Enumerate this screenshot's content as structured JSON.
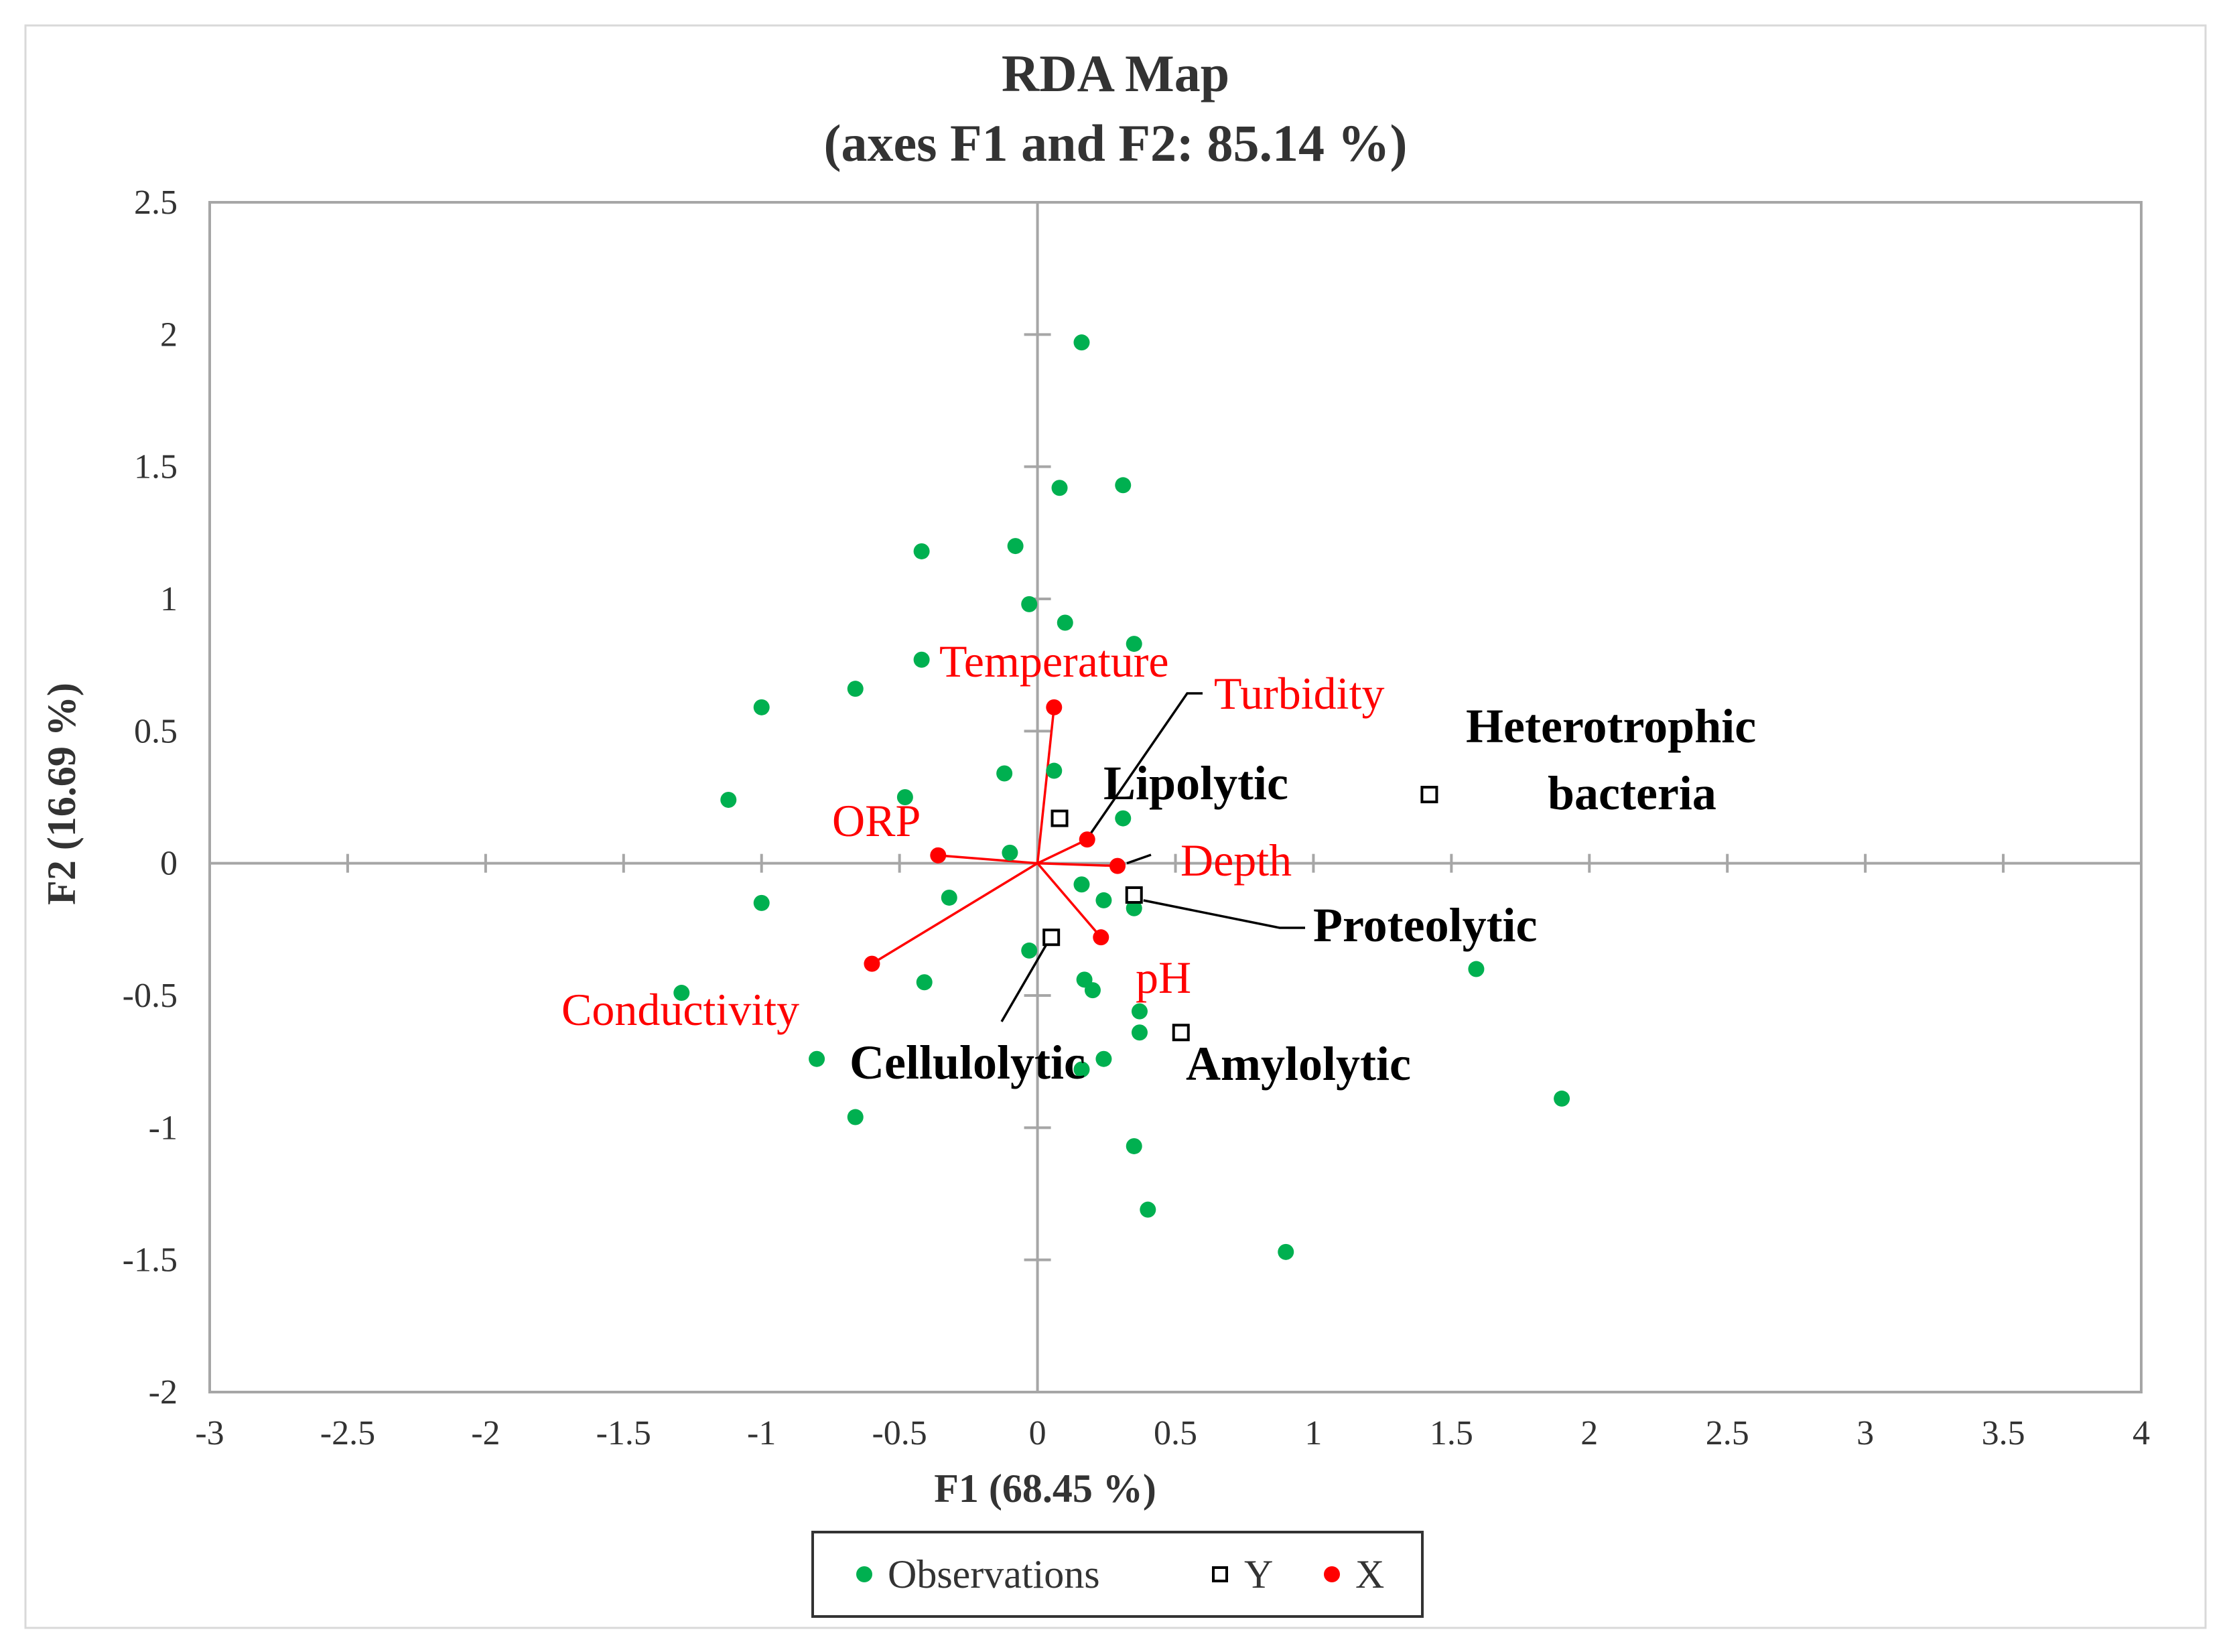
{
  "chart_data": {
    "type": "scatter",
    "title": "RDA Map",
    "subtitle": "(axes F1 and F2: 85.14 %)",
    "xlabel": "F1 (68.45 %)",
    "ylabel": "F2 (16.69 %)",
    "xlim": [
      -3,
      4
    ],
    "ylim": [
      -2,
      2.5
    ],
    "xticks": [
      -3,
      -2.5,
      -2,
      -1.5,
      -1,
      -0.5,
      0,
      0.5,
      1,
      1.5,
      2,
      2.5,
      3,
      3.5,
      4
    ],
    "yticks": [
      -2,
      -1.5,
      -1,
      -0.5,
      0,
      0.5,
      1,
      1.5,
      2,
      2.5
    ],
    "xtick_labels": [
      "-3",
      "-2.5",
      "-2",
      "-1.5",
      "-1",
      "-0.5",
      "0",
      "0.5",
      "1",
      "1.5",
      "2",
      "2.5",
      "3",
      "3.5",
      "4"
    ],
    "ytick_labels": [
      "-2",
      "-1.5",
      "-1",
      "-0.5",
      "0",
      "0.5",
      "1",
      "1.5",
      "2",
      "2.5"
    ],
    "colors": {
      "observations": "#00b050",
      "x": "#ff0000",
      "y": "#000000",
      "label_x": "#ff0000",
      "label_y": "#000000"
    },
    "observations": [
      [
        0.16,
        1.97
      ],
      [
        0.31,
        1.43
      ],
      [
        0.08,
        1.42
      ],
      [
        -0.42,
        1.18
      ],
      [
        -0.08,
        1.2
      ],
      [
        -0.03,
        0.98
      ],
      [
        0.1,
        0.91
      ],
      [
        0.35,
        0.83
      ],
      [
        -0.42,
        0.77
      ],
      [
        -0.66,
        0.66
      ],
      [
        -1.0,
        0.59
      ],
      [
        -0.12,
        0.34
      ],
      [
        0.06,
        0.35
      ],
      [
        -1.12,
        0.24
      ],
      [
        -0.48,
        0.25
      ],
      [
        0.31,
        0.17
      ],
      [
        -0.1,
        0.04
      ],
      [
        0.16,
        -0.08
      ],
      [
        0.24,
        -0.14
      ],
      [
        0.35,
        -0.17
      ],
      [
        -0.32,
        -0.13
      ],
      [
        -1.0,
        -0.15
      ],
      [
        -0.03,
        -0.33
      ],
      [
        0.17,
        -0.44
      ],
      [
        0.2,
        -0.48
      ],
      [
        -0.41,
        -0.45
      ],
      [
        -1.29,
        -0.49
      ],
      [
        0.37,
        -0.56
      ],
      [
        0.37,
        -0.64
      ],
      [
        -0.8,
        -0.74
      ],
      [
        0.24,
        -0.74
      ],
      [
        0.16,
        -0.78
      ],
      [
        -0.66,
        -0.96
      ],
      [
        0.35,
        -1.07
      ],
      [
        0.4,
        -1.31
      ],
      [
        0.9,
        -1.47
      ],
      [
        1.59,
        -0.4
      ],
      [
        1.9,
        -0.89
      ]
    ],
    "x_variables": [
      {
        "name": "Temperature",
        "x": 0.06,
        "y": 0.59
      },
      {
        "name": "Turbidity",
        "x": 0.18,
        "y": 0.09
      },
      {
        "name": "ORP",
        "x": -0.36,
        "y": 0.03
      },
      {
        "name": "Depth",
        "x": 0.29,
        "y": -0.01
      },
      {
        "name": "pH",
        "x": 0.23,
        "y": -0.28
      },
      {
        "name": "Conductivity",
        "x": -0.6,
        "y": -0.38
      }
    ],
    "y_variables": [
      {
        "name": "Lipolytic",
        "x": 0.08,
        "y": 0.17
      },
      {
        "name": "Heterotrophic",
        "name2": "bacteria",
        "x": 1.42,
        "y": 0.26
      },
      {
        "name": "Proteolytic",
        "x": 0.35,
        "y": -0.12
      },
      {
        "name": "Cellulolytic",
        "x": 0.05,
        "y": -0.28
      },
      {
        "name": "Amylolytic",
        "x": 0.52,
        "y": -0.64
      }
    ],
    "legend": {
      "position": "bottom-center",
      "entries": [
        "Observations",
        "Y",
        "X"
      ]
    }
  }
}
